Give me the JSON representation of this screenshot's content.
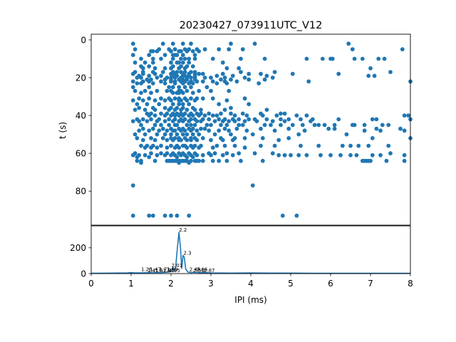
{
  "chart_data": [
    {
      "type": "scatter",
      "title": "20230427_073911UTC_V12",
      "xlabel": "",
      "ylabel": "t (s)",
      "xlim": [
        0,
        8
      ],
      "ylim": [
        98,
        -3
      ],
      "y_inverted": true,
      "y_ticks": [
        "0",
        "20",
        "40",
        "60",
        "80"
      ],
      "color": "#1f77b4",
      "rows": [
        {
          "t": 2,
          "ipi": [
            1.05,
            1.8,
            2.05,
            2.3,
            2.5,
            3.5,
            4.1,
            6.45
          ]
        },
        {
          "t": 5,
          "ipi": [
            1.1,
            1.7,
            1.95,
            2.1,
            2.35,
            2.45,
            2.65,
            2.85,
            3.2,
            3.45,
            3.8,
            6.55,
            7.8
          ]
        },
        {
          "t": 6,
          "ipi": [
            1.5,
            1.55,
            1.65,
            2.0,
            2.2,
            2.25,
            2.4,
            2.55,
            2.7
          ]
        },
        {
          "t": 8,
          "ipi": [
            1.05,
            1.45,
            1.85,
            2.05,
            2.1,
            2.15,
            2.3,
            2.6
          ]
        },
        {
          "t": 10,
          "ipi": [
            1.25,
            1.55,
            1.75,
            2.05,
            2.25,
            2.35,
            2.45,
            2.6,
            3.05,
            3.75,
            4.35,
            5.4,
            5.8,
            6.0,
            6.05,
            6.6,
            6.8,
            7.2,
            7.35
          ]
        },
        {
          "t": 12,
          "ipi": [
            1.1,
            1.35,
            1.55,
            2.0,
            2.15,
            2.2,
            2.3,
            2.45,
            3.3
          ]
        },
        {
          "t": 14,
          "ipi": [
            1.25,
            1.45,
            2.05,
            2.25,
            2.4,
            2.55
          ]
        },
        {
          "t": 15,
          "ipi": [
            1.3,
            1.6,
            1.85,
            2.0,
            2.2,
            2.35,
            3.4,
            3.7,
            7.0
          ]
        },
        {
          "t": 17,
          "ipi": [
            1.1,
            1.3,
            1.55,
            1.8,
            2.05,
            2.15,
            2.25,
            2.35,
            2.5,
            2.6,
            3.75,
            4.6,
            7.5
          ]
        },
        {
          "t": 18,
          "ipi": [
            1.05,
            1.3,
            1.6,
            2.0,
            2.1,
            2.3,
            2.45,
            2.6,
            2.7,
            2.8,
            3.3,
            3.95,
            4.25,
            5.05,
            6.2
          ]
        },
        {
          "t": 19,
          "ipi": [
            1.2,
            1.45,
            1.75,
            2.05,
            2.15,
            2.3,
            2.35,
            2.45,
            2.6,
            3.15,
            3.55,
            4.4,
            6.95,
            7.1
          ]
        },
        {
          "t": 20,
          "ipi": [
            1.15,
            1.25,
            1.65,
            1.9,
            2.0,
            2.1,
            2.25,
            2.4,
            2.5,
            2.6,
            2.85,
            3.0,
            3.35,
            3.85,
            4.55
          ]
        },
        {
          "t": 21,
          "ipi": [
            1.4,
            1.5,
            1.85,
            2.0,
            2.2,
            2.3,
            2.4,
            2.6,
            3.25,
            3.5,
            3.95,
            4.35
          ]
        },
        {
          "t": 22,
          "ipi": [
            1.05,
            1.3,
            1.45,
            1.75,
            2.0,
            2.1,
            2.25,
            2.35,
            2.5,
            2.65,
            2.8,
            3.05,
            3.35,
            3.65,
            5.45,
            8.0
          ]
        },
        {
          "t": 23,
          "ipi": [
            1.15,
            1.25,
            1.55,
            1.85,
            2.1,
            2.3,
            2.45,
            2.55,
            3.15,
            3.4,
            4.2
          ]
        },
        {
          "t": 25,
          "ipi": [
            1.05,
            1.45,
            1.95,
            2.05,
            2.2,
            2.35,
            2.5,
            2.9
          ]
        },
        {
          "t": 27,
          "ipi": [
            1.1,
            1.35,
            1.65,
            1.9,
            2.0,
            2.2,
            2.25,
            2.4,
            2.7,
            3.0,
            3.45
          ]
        },
        {
          "t": 28,
          "ipi": [
            1.25,
            1.5,
            2.05,
            2.15,
            2.2,
            2.3,
            2.55
          ]
        },
        {
          "t": 31,
          "ipi": [
            1.2,
            1.45,
            1.75,
            1.95,
            2.1,
            2.2,
            2.35,
            2.5,
            2.65,
            2.8,
            3.05,
            3.85
          ]
        },
        {
          "t": 32,
          "ipi": [
            1.05,
            1.3,
            1.6,
            1.85,
            2.0,
            2.2,
            2.25,
            2.4,
            2.6,
            3.4
          ]
        },
        {
          "t": 34,
          "ipi": [
            1.15,
            1.4,
            1.7,
            2.05,
            2.2,
            2.3,
            2.45,
            3.2,
            3.95
          ]
        },
        {
          "t": 36,
          "ipi": [
            1.2,
            1.55,
            1.85,
            2.0,
            2.15,
            2.3,
            2.55,
            3.5
          ]
        },
        {
          "t": 37,
          "ipi": [
            1.1,
            1.35,
            1.6,
            1.95,
            2.1,
            2.25,
            2.4,
            2.6,
            2.75,
            3.35,
            4.4
          ]
        },
        {
          "t": 39,
          "ipi": [
            1.4,
            1.5,
            1.75,
            1.9,
            2.05,
            2.15,
            2.25,
            2.35,
            2.5,
            2.65,
            2.75,
            2.95,
            3.25,
            3.5,
            3.8,
            4.25,
            4.75,
            4.85
          ]
        },
        {
          "t": 40,
          "ipi": [
            1.45,
            1.6,
            1.85,
            2.0,
            2.1,
            2.2,
            2.3,
            2.45,
            2.55,
            2.7,
            2.85,
            3.05,
            3.15,
            3.6,
            3.9,
            4.3,
            4.65,
            5.15,
            5.4,
            7.85,
            7.95
          ]
        },
        {
          "t": 42,
          "ipi": [
            1.15,
            1.3,
            1.5,
            1.7,
            1.95,
            2.1,
            2.25,
            2.35,
            2.5,
            2.6,
            2.8,
            2.95,
            3.2,
            3.35,
            3.55,
            3.7,
            3.95,
            4.1,
            4.4,
            4.75,
            4.95,
            5.25,
            5.55,
            6.2,
            7.05,
            7.15,
            8.0
          ]
        },
        {
          "t": 43,
          "ipi": [
            1.05,
            1.2,
            1.4,
            1.65,
            1.85,
            2.05,
            2.2,
            2.3,
            2.45,
            2.65,
            2.75,
            3.1,
            3.3,
            3.45,
            3.6,
            3.85,
            4.15,
            4.55,
            4.85,
            5.5
          ]
        },
        {
          "t": 45,
          "ipi": [
            1.25,
            1.6,
            1.75,
            1.95,
            2.1,
            2.15,
            2.4,
            2.5,
            2.6,
            2.9,
            3.0,
            3.25,
            3.4,
            3.7,
            3.8,
            4.35,
            4.5,
            4.75,
            5.05,
            5.3,
            5.6,
            5.7,
            5.85,
            6.1,
            6.55,
            6.6,
            6.85,
            7.3,
            7.45
          ]
        },
        {
          "t": 47,
          "ipi": [
            1.3,
            1.55,
            1.8,
            2.0,
            2.2,
            2.3,
            2.45,
            2.55,
            2.75,
            2.85,
            3.35,
            3.65,
            4.25,
            4.95,
            5.95,
            6.1,
            7.15,
            7.75
          ]
        },
        {
          "t": 48,
          "ipi": [
            1.2,
            1.45,
            1.7,
            1.9,
            2.05,
            2.1,
            2.25,
            2.35,
            2.5,
            2.65,
            2.95,
            3.2,
            3.45,
            3.9,
            4.6,
            5.35,
            6.85,
            7.25,
            7.85
          ]
        },
        {
          "t": 50,
          "ipi": [
            1.1,
            1.35,
            1.65,
            1.85,
            2.0,
            2.15,
            2.3,
            2.4,
            2.55,
            2.7,
            3.1,
            3.5,
            4.05,
            5.2,
            6.4
          ]
        },
        {
          "t": 52,
          "ipi": [
            1.15,
            1.5,
            1.8,
            2.0,
            2.1,
            2.2,
            2.35,
            2.5,
            2.6,
            2.8,
            3.25,
            3.6,
            3.85,
            4.3,
            4.95,
            7.05,
            8.0
          ]
        },
        {
          "t": 53,
          "ipi": [
            1.3,
            1.6,
            1.9,
            2.05,
            2.2,
            2.25,
            2.4,
            2.5,
            2.65,
            3.0,
            3.3,
            3.55,
            4.7
          ]
        },
        {
          "t": 56,
          "ipi": [
            1.25,
            1.4,
            1.55,
            1.75,
            2.0,
            2.15,
            2.3,
            2.35,
            2.5,
            2.6,
            2.75,
            3.15,
            3.35,
            3.6,
            4.25,
            4.6,
            5.25,
            5.7,
            6.3,
            6.5,
            6.7,
            6.95,
            7.45
          ]
        },
        {
          "t": 57,
          "ipi": [
            1.35,
            1.5,
            1.65,
            1.9,
            2.1,
            2.2,
            2.4,
            2.55,
            2.7,
            3.05,
            3.85
          ]
        },
        {
          "t": 60,
          "ipi": [
            1.1,
            1.5,
            1.75,
            1.9,
            2.05,
            2.2,
            2.3,
            2.45,
            2.6,
            2.95,
            3.1,
            3.4,
            3.7,
            4.1,
            4.55,
            7.5
          ]
        },
        {
          "t": 61,
          "ipi": [
            1.05,
            1.2,
            1.35,
            1.65,
            1.85,
            2.0,
            2.1,
            2.25,
            2.35,
            2.5,
            2.65,
            2.8,
            3.0,
            3.3,
            3.55,
            4.7,
            4.85,
            5.0,
            5.2,
            5.4,
            5.75,
            6.0,
            6.25,
            6.5,
            6.65,
            7.05,
            7.25,
            7.85
          ]
        },
        {
          "t": 62,
          "ipi": [
            1.15,
            1.45,
            2.15,
            2.4,
            2.55
          ]
        },
        {
          "t": 64,
          "ipi": [
            1.15,
            1.25,
            1.6,
            1.9,
            1.95,
            2.0,
            2.05,
            2.1,
            2.15,
            2.2,
            2.25,
            2.3,
            2.35,
            2.4,
            2.5,
            2.6,
            2.65,
            2.7,
            2.8,
            3.05,
            3.2,
            3.4,
            3.75,
            4.3,
            6.8,
            6.85,
            6.9,
            6.95,
            7.0,
            7.4,
            7.85
          ]
        },
        {
          "t": 65,
          "ipi": [
            1.25,
            2.2,
            2.45
          ]
        },
        {
          "t": 77,
          "ipi": [
            1.05,
            4.05
          ]
        },
        {
          "t": 93,
          "ipi": [
            1.05,
            1.45,
            1.55,
            1.85,
            2.0,
            2.15,
            2.45,
            4.8,
            5.15
          ]
        }
      ]
    },
    {
      "type": "line",
      "title": "",
      "xlabel": "IPI (ms)",
      "ylabel": "",
      "xlim": [
        0,
        8
      ],
      "ylim": [
        0,
        370
      ],
      "x_ticks": [
        "0",
        "1",
        "2",
        "3",
        "4",
        "5",
        "6",
        "7",
        "8"
      ],
      "y_ticks": [
        "0",
        "200"
      ],
      "color": "#1f77b4",
      "points": [
        [
          0,
          3
        ],
        [
          0.5,
          4
        ],
        [
          0.9,
          5
        ],
        [
          1.0,
          8
        ],
        [
          1.1,
          5
        ],
        [
          1.3,
          6
        ],
        [
          1.45,
          7
        ],
        [
          1.6,
          9
        ],
        [
          1.75,
          8
        ],
        [
          1.85,
          10
        ],
        [
          1.95,
          12
        ],
        [
          2.0,
          20
        ],
        [
          2.05,
          45
        ],
        [
          2.08,
          18
        ],
        [
          2.12,
          60
        ],
        [
          2.16,
          200
        ],
        [
          2.2,
          320
        ],
        [
          2.24,
          190
        ],
        [
          2.27,
          40
        ],
        [
          2.3,
          140
        ],
        [
          2.33,
          130
        ],
        [
          2.37,
          35
        ],
        [
          2.42,
          12
        ],
        [
          2.5,
          8
        ],
        [
          2.6,
          10
        ],
        [
          2.7,
          7
        ],
        [
          2.8,
          8
        ],
        [
          2.9,
          6
        ],
        [
          3.0,
          5
        ],
        [
          3.5,
          4
        ],
        [
          4.0,
          5
        ],
        [
          4.5,
          4
        ],
        [
          5.0,
          4
        ],
        [
          5.5,
          3
        ],
        [
          6.0,
          3
        ],
        [
          6.5,
          3
        ],
        [
          7.0,
          3
        ],
        [
          7.5,
          3
        ],
        [
          8.0,
          3
        ]
      ],
      "peak_labels": [
        {
          "text": "2.2",
          "x": 2.2,
          "y": 320
        },
        {
          "text": "2.3",
          "x": 2.31,
          "y": 142
        },
        {
          "text": "2.01",
          "x": 2.01,
          "y": 45
        },
        {
          "text": "1.25",
          "x": 1.25,
          "y": 15
        },
        {
          "text": "1.47",
          "x": 1.47,
          "y": 15
        },
        {
          "text": "1.71",
          "x": 1.7,
          "y": 15
        },
        {
          "text": "1.89",
          "x": 1.89,
          "y": 15
        },
        {
          "text": "1.41",
          "x": 1.41,
          "y": 6
        },
        {
          "text": "1.61",
          "x": 1.6,
          "y": 6
        },
        {
          "text": "1.81",
          "x": 1.8,
          "y": 6
        },
        {
          "text": "1.95",
          "x": 1.95,
          "y": 6
        },
        {
          "text": "2.46",
          "x": 2.46,
          "y": 15
        },
        {
          "text": "2.66",
          "x": 2.64,
          "y": 15
        },
        {
          "text": "2.56",
          "x": 2.56,
          "y": 6
        },
        {
          "text": "2.87",
          "x": 2.82,
          "y": 6
        }
      ]
    }
  ]
}
